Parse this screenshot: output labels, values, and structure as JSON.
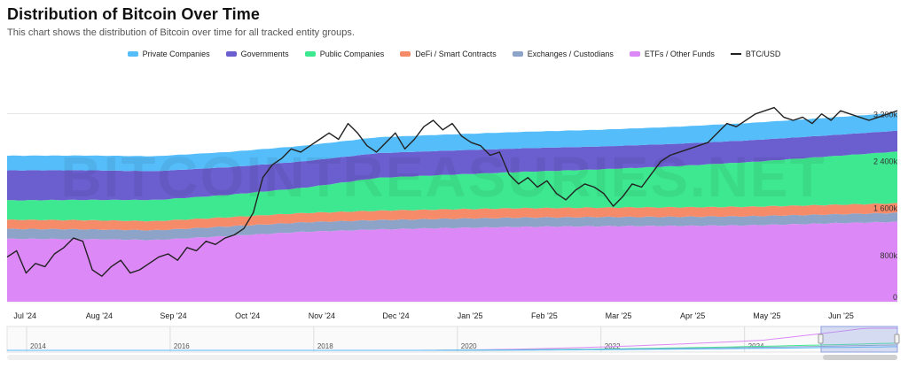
{
  "title": "Distribution of Bitcoin Over Time",
  "subtitle": "This chart shows the distribution of Bitcoin over time for all tracked entity groups.",
  "watermark": "BITCOINTREASURIES.NET",
  "chart_data": {
    "type": "area",
    "stacked": true,
    "x_labels": [
      "Jul '24",
      "Aug '24",
      "Sep '24",
      "Oct '24",
      "Nov '24",
      "Dec '24",
      "Jan '25",
      "Feb '25",
      "Mar '25",
      "Apr '25",
      "May '25",
      "Jun '25"
    ],
    "y_tick_labels": [
      "0",
      "800k",
      "1 600k",
      "2 400k",
      "3 200k"
    ],
    "y_ticks": [
      0,
      800000,
      1600000,
      2400000,
      3200000
    ],
    "ylim": [
      0,
      3900000
    ],
    "months_span": 12,
    "series": [
      {
        "name": "ETFs / Other Funds",
        "color": "#dd88f7",
        "values": [
          1070000,
          1065000,
          1050000,
          1120000,
          1190000,
          1230000,
          1255000,
          1275000,
          1285000,
          1290000,
          1300000,
          1330000,
          1360000
        ]
      },
      {
        "name": "Exchanges / Custodians",
        "color": "#8ea3c8",
        "values": [
          170000,
          168000,
          165000,
          163000,
          161000,
          160000,
          158000,
          157000,
          156000,
          155000,
          154000,
          153000,
          152000
        ]
      },
      {
        "name": "DeFi / Smart Contracts",
        "color": "#f58b68",
        "values": [
          155000,
          155000,
          156000,
          157000,
          158000,
          159000,
          160000,
          160000,
          161000,
          161000,
          162000,
          162000,
          163000
        ]
      },
      {
        "name": "Public Companies",
        "color": "#3ee890",
        "values": [
          330000,
          345000,
          360000,
          380000,
          430000,
          560000,
          590000,
          620000,
          650000,
          700000,
          760000,
          820000,
          880000
        ]
      },
      {
        "name": "Governments",
        "color": "#6b5fcf",
        "values": [
          510000,
          505000,
          490000,
          470000,
          450000,
          420000,
          410000,
          400000,
          390000,
          380000,
          370000,
          360000,
          355000
        ]
      },
      {
        "name": "Private Companies",
        "color": "#55bdf9",
        "values": [
          250000,
          250000,
          255000,
          260000,
          265000,
          270000,
          275000,
          280000,
          285000,
          290000,
          295000,
          300000,
          305000
        ]
      }
    ],
    "btc_usd": {
      "name": "BTC/USD",
      "color": "#222222",
      "unit": "USD",
      "ylim": [
        48000,
        120000
      ],
      "values": [
        62000,
        64000,
        57000,
        60000,
        59000,
        63000,
        65000,
        68000,
        67000,
        58000,
        56000,
        59000,
        61000,
        57000,
        58000,
        60000,
        62000,
        63000,
        61000,
        65000,
        64000,
        67000,
        66000,
        68000,
        69000,
        71000,
        76000,
        87000,
        91000,
        93000,
        96000,
        95000,
        97000,
        99000,
        101000,
        99000,
        104000,
        101000,
        97000,
        95000,
        98000,
        101000,
        96000,
        99000,
        103000,
        105000,
        102000,
        104000,
        100000,
        98000,
        97000,
        94000,
        95000,
        88000,
        85000,
        87000,
        84000,
        86000,
        82000,
        80000,
        83000,
        85000,
        84000,
        82000,
        78000,
        81000,
        85000,
        84000,
        88000,
        92000,
        94000,
        95000,
        96000,
        97000,
        98000,
        101000,
        104000,
        103000,
        105000,
        107000,
        108000,
        109000,
        106000,
        105000,
        106000,
        104000,
        107000,
        105000,
        108000,
        107000,
        106000,
        105000,
        106000,
        107000,
        108000
      ]
    },
    "navigator": {
      "year_labels": [
        "2014",
        "2016",
        "2018",
        "2020",
        "2022",
        "2024"
      ]
    }
  },
  "legend": [
    {
      "label": "Private Companies",
      "color": "#55bdf9",
      "kind": "area"
    },
    {
      "label": "Governments",
      "color": "#6b5fcf",
      "kind": "area"
    },
    {
      "label": "Public Companies",
      "color": "#3ee890",
      "kind": "area"
    },
    {
      "label": "DeFi / Smart Contracts",
      "color": "#f58b68",
      "kind": "area"
    },
    {
      "label": "Exchanges / Custodians",
      "color": "#8ea3c8",
      "kind": "area"
    },
    {
      "label": "ETFs / Other Funds",
      "color": "#dd88f7",
      "kind": "area"
    },
    {
      "label": "BTC/USD",
      "color": "#222222",
      "kind": "line"
    }
  ]
}
